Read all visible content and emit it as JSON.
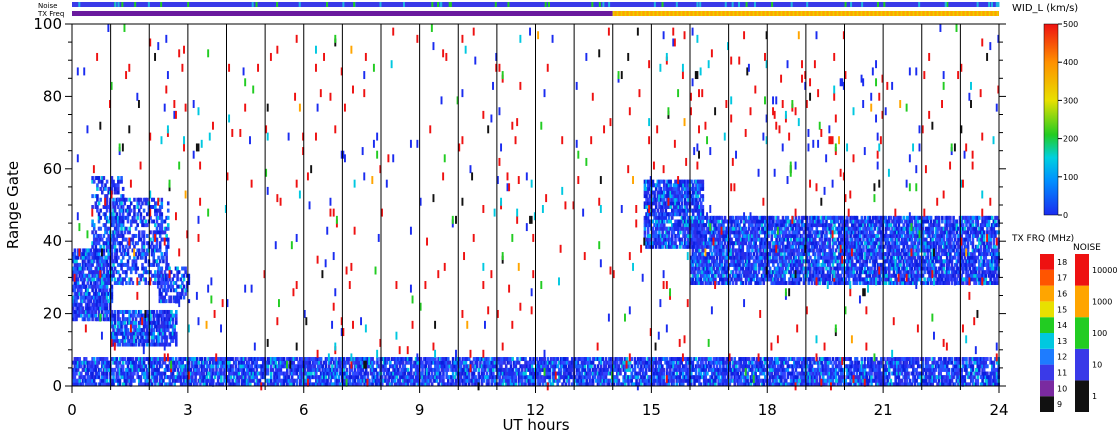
{
  "chart_data": {
    "type": "heatmap",
    "title": "",
    "xlabel": "UT hours",
    "ylabel": "Range Gate",
    "xlim": [
      0,
      24
    ],
    "ylim": [
      0,
      100
    ],
    "x_ticks": [
      "0",
      "3",
      "6",
      "9",
      "12",
      "15",
      "18",
      "21",
      "24"
    ],
    "y_ticks": [
      "0",
      "20",
      "40",
      "60",
      "80",
      "100"
    ],
    "hour_gridlines": true,
    "status_bars": {
      "noise_label": "Noise",
      "txfreq_label": "TX Freq",
      "txfreq_change_hour": 14
    },
    "colorbars": {
      "wid": {
        "title": "WID_L (km/s)",
        "ticks": [
          "0",
          "100",
          "200",
          "300",
          "400",
          "500"
        ],
        "min": 0,
        "max": 500
      },
      "txfreq": {
        "title": "TX FRQ (MHz)",
        "ticks": [
          "9",
          "10",
          "11",
          "12",
          "13",
          "14",
          "15",
          "16",
          "17",
          "18"
        ]
      },
      "noise": {
        "title": "NOISE",
        "ticks": [
          "1",
          "10",
          "100",
          "1000",
          "10000"
        ]
      }
    },
    "scatter_regions": [
      {
        "x": [
          0,
          1
        ],
        "gates": [
          18,
          38
        ],
        "width": "0-100",
        "coverage": "dense"
      },
      {
        "x": [
          0.5,
          1.3
        ],
        "gates": [
          38,
          58
        ],
        "width": "0-100",
        "coverage": "patchy"
      },
      {
        "x": [
          1,
          2.5
        ],
        "gates": [
          28,
          52
        ],
        "width": "0-100",
        "coverage": "patchy"
      },
      {
        "x": [
          1,
          2.7
        ],
        "gates": [
          11,
          21
        ],
        "width": "0-100",
        "coverage": "dense"
      },
      {
        "x": [
          2.2,
          3
        ],
        "gates": [
          23,
          33
        ],
        "width": "0-100",
        "coverage": "patchy"
      },
      {
        "x": [
          0,
          24
        ],
        "gates": [
          0,
          8
        ],
        "width": "0-100",
        "coverage": "dense"
      },
      {
        "x": [
          14.8,
          16.3
        ],
        "gates": [
          38,
          57
        ],
        "width": "0-100",
        "coverage": "dense"
      },
      {
        "x": [
          16,
          24
        ],
        "gates": [
          28,
          47
        ],
        "width": "0-100",
        "coverage": "dense"
      },
      {
        "x": [
          16,
          24
        ],
        "gates": [
          55,
          88
        ],
        "width": "0-500",
        "coverage": "sparse"
      },
      {
        "x": [
          0,
          24
        ],
        "gates": [
          0,
          100
        ],
        "width": "0-500",
        "coverage": "sparse"
      }
    ]
  }
}
